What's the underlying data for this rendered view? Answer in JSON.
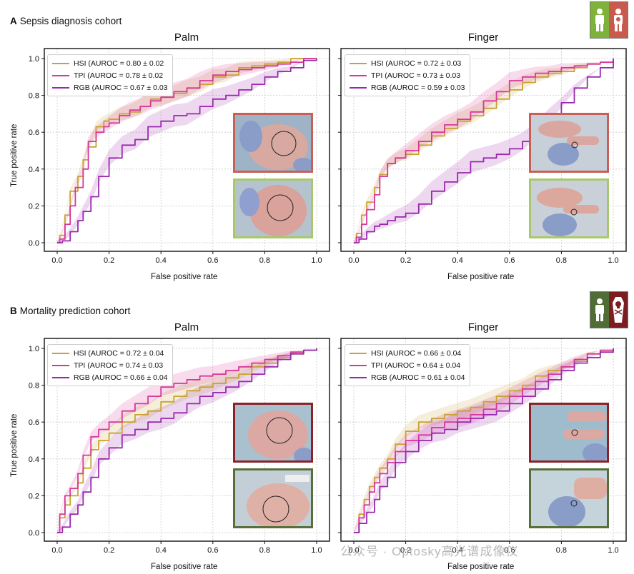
{
  "sections": [
    {
      "letter": "A",
      "title": "Sepsis diagnosis cohort"
    },
    {
      "letter": "B",
      "title": "Mortality prediction cohort"
    }
  ],
  "axis": {
    "xlabel": "False positive rate",
    "ylabel": "True positive rate"
  },
  "colors": {
    "HSI": "#c8a232",
    "TPI": "#d6389a",
    "RGB": "#9a28ad",
    "septic_border": "#c96058",
    "nonseptic_border": "#a8c96a",
    "deceased_border": "#8a2228",
    "survivor_border": "#55703a"
  },
  "watermark": "公众号 · Optosky高光谱成像仪",
  "chart_data": [
    {
      "type": "line",
      "id": "A-palm",
      "title": "Palm",
      "xlabel": "False positive rate",
      "ylabel": "True positive rate",
      "xlim": [
        0,
        1
      ],
      "ylim": [
        0,
        1
      ],
      "grid": true,
      "legend_position": "top-left",
      "ticks": [
        "0.0",
        "0.2",
        "0.4",
        "0.6",
        "0.8",
        "1.0"
      ],
      "series": [
        {
          "name": "HSI",
          "label": "HSI (AUROC = 0.80 ± 0.02",
          "x": [
            0,
            0.01,
            0.03,
            0.05,
            0.08,
            0.1,
            0.12,
            0.15,
            0.18,
            0.2,
            0.24,
            0.28,
            0.32,
            0.36,
            0.4,
            0.45,
            0.5,
            0.55,
            0.6,
            0.65,
            0.7,
            0.75,
            0.8,
            0.85,
            0.9,
            0.95,
            1.0
          ],
          "y": [
            0,
            0.04,
            0.15,
            0.28,
            0.36,
            0.45,
            0.52,
            0.63,
            0.66,
            0.67,
            0.7,
            0.71,
            0.74,
            0.78,
            0.79,
            0.81,
            0.84,
            0.86,
            0.9,
            0.91,
            0.95,
            0.96,
            0.97,
            0.98,
            1.0,
            1.0,
            1.0
          ]
        },
        {
          "name": "TPI",
          "label": "TPI (AUROC = 0.78 ± 0.02",
          "x": [
            0,
            0.01,
            0.03,
            0.05,
            0.07,
            0.1,
            0.12,
            0.15,
            0.18,
            0.2,
            0.24,
            0.28,
            0.32,
            0.36,
            0.4,
            0.45,
            0.5,
            0.55,
            0.6,
            0.65,
            0.7,
            0.75,
            0.8,
            0.85,
            0.9,
            0.95,
            1.0
          ],
          "y": [
            0,
            0.02,
            0.1,
            0.2,
            0.3,
            0.4,
            0.55,
            0.6,
            0.63,
            0.65,
            0.69,
            0.72,
            0.74,
            0.77,
            0.79,
            0.82,
            0.84,
            0.88,
            0.91,
            0.93,
            0.94,
            0.95,
            0.96,
            0.97,
            0.98,
            1.0,
            1.0
          ]
        },
        {
          "name": "RGB",
          "label": "RGB (AUROC = 0.67 ± 0.03",
          "x": [
            0,
            0.02,
            0.05,
            0.08,
            0.1,
            0.13,
            0.16,
            0.2,
            0.25,
            0.3,
            0.35,
            0.4,
            0.45,
            0.5,
            0.55,
            0.6,
            0.65,
            0.7,
            0.75,
            0.8,
            0.85,
            0.9,
            0.95,
            1.0
          ],
          "y": [
            0,
            0.01,
            0.06,
            0.12,
            0.17,
            0.25,
            0.36,
            0.46,
            0.53,
            0.56,
            0.63,
            0.66,
            0.69,
            0.7,
            0.74,
            0.78,
            0.8,
            0.83,
            0.86,
            0.9,
            0.93,
            0.95,
            0.99,
            1.0
          ]
        }
      ]
    },
    {
      "type": "line",
      "id": "A-finger",
      "title": "Finger",
      "xlabel": "False positive rate",
      "ylabel": "",
      "xlim": [
        0,
        1
      ],
      "ylim": [
        0,
        1
      ],
      "grid": true,
      "legend_position": "top-left",
      "ticks": [
        "0.0",
        "0.2",
        "0.4",
        "0.6",
        "0.8",
        "1.0"
      ],
      "series": [
        {
          "name": "HSI",
          "label": "HSI (AUROC = 0.72 ± 0.03",
          "x": [
            0,
            0.01,
            0.03,
            0.05,
            0.08,
            0.1,
            0.13,
            0.16,
            0.2,
            0.25,
            0.3,
            0.35,
            0.4,
            0.45,
            0.5,
            0.55,
            0.6,
            0.65,
            0.7,
            0.75,
            0.8,
            0.85,
            0.9,
            0.95,
            1.0
          ],
          "y": [
            0,
            0.05,
            0.15,
            0.22,
            0.3,
            0.37,
            0.43,
            0.46,
            0.48,
            0.53,
            0.58,
            0.62,
            0.66,
            0.69,
            0.73,
            0.78,
            0.83,
            0.87,
            0.9,
            0.92,
            0.93,
            0.95,
            0.97,
            0.98,
            1.0
          ]
        },
        {
          "name": "TPI",
          "label": "TPI (AUROC = 0.73 ± 0.03",
          "x": [
            0,
            0.01,
            0.03,
            0.05,
            0.08,
            0.1,
            0.13,
            0.16,
            0.2,
            0.25,
            0.3,
            0.35,
            0.4,
            0.45,
            0.5,
            0.55,
            0.6,
            0.65,
            0.7,
            0.75,
            0.8,
            0.85,
            0.9,
            0.95,
            1.0
          ],
          "y": [
            0,
            0.03,
            0.1,
            0.18,
            0.26,
            0.36,
            0.43,
            0.46,
            0.5,
            0.55,
            0.6,
            0.64,
            0.67,
            0.71,
            0.77,
            0.82,
            0.88,
            0.9,
            0.92,
            0.93,
            0.95,
            0.96,
            0.97,
            0.98,
            1.0
          ]
        },
        {
          "name": "RGB",
          "label": "RGB (AUROC = 0.59 ± 0.03",
          "x": [
            0,
            0.02,
            0.05,
            0.08,
            0.1,
            0.13,
            0.16,
            0.2,
            0.25,
            0.3,
            0.35,
            0.4,
            0.45,
            0.5,
            0.55,
            0.6,
            0.65,
            0.7,
            0.75,
            0.8,
            0.85,
            0.9,
            0.95,
            1.0
          ],
          "y": [
            0,
            0.02,
            0.06,
            0.09,
            0.1,
            0.12,
            0.14,
            0.16,
            0.21,
            0.28,
            0.33,
            0.38,
            0.44,
            0.46,
            0.48,
            0.51,
            0.55,
            0.61,
            0.69,
            0.76,
            0.84,
            0.9,
            0.95,
            1.0
          ]
        }
      ]
    },
    {
      "type": "line",
      "id": "B-palm",
      "title": "Palm",
      "xlabel": "False positive rate",
      "ylabel": "True positive rate",
      "xlim": [
        0,
        1
      ],
      "ylim": [
        0,
        1
      ],
      "grid": true,
      "legend_position": "top-left",
      "ticks": [
        "0.0",
        "0.2",
        "0.4",
        "0.6",
        "0.8",
        "1.0"
      ],
      "series": [
        {
          "name": "HSI",
          "label": "HSI (AUROC = 0.72 ± 0.04",
          "x": [
            0,
            0.01,
            0.03,
            0.05,
            0.08,
            0.1,
            0.13,
            0.16,
            0.2,
            0.25,
            0.3,
            0.35,
            0.4,
            0.45,
            0.5,
            0.55,
            0.6,
            0.65,
            0.7,
            0.75,
            0.8,
            0.85,
            0.9,
            0.95,
            1.0
          ],
          "y": [
            0,
            0.08,
            0.15,
            0.2,
            0.27,
            0.35,
            0.45,
            0.5,
            0.54,
            0.6,
            0.64,
            0.66,
            0.71,
            0.74,
            0.77,
            0.79,
            0.81,
            0.84,
            0.86,
            0.9,
            0.92,
            0.95,
            0.97,
            0.99,
            1.0
          ]
        },
        {
          "name": "TPI",
          "label": "TPI (AUROC = 0.74 ± 0.03",
          "x": [
            0,
            0.01,
            0.03,
            0.05,
            0.08,
            0.1,
            0.13,
            0.16,
            0.2,
            0.25,
            0.3,
            0.35,
            0.4,
            0.45,
            0.5,
            0.55,
            0.6,
            0.65,
            0.7,
            0.75,
            0.8,
            0.85,
            0.9,
            0.95,
            1.0
          ],
          "y": [
            0,
            0.1,
            0.2,
            0.24,
            0.32,
            0.42,
            0.52,
            0.56,
            0.6,
            0.66,
            0.7,
            0.74,
            0.79,
            0.81,
            0.83,
            0.85,
            0.86,
            0.88,
            0.9,
            0.92,
            0.94,
            0.96,
            0.98,
            0.99,
            1.0
          ]
        },
        {
          "name": "RGB",
          "label": "RGB (AUROC = 0.66 ± 0.04",
          "x": [
            0,
            0.02,
            0.05,
            0.08,
            0.1,
            0.13,
            0.16,
            0.2,
            0.25,
            0.3,
            0.35,
            0.4,
            0.45,
            0.5,
            0.55,
            0.6,
            0.65,
            0.7,
            0.75,
            0.8,
            0.85,
            0.9,
            0.95,
            1.0
          ],
          "y": [
            0,
            0.03,
            0.1,
            0.15,
            0.22,
            0.3,
            0.4,
            0.46,
            0.53,
            0.56,
            0.6,
            0.62,
            0.65,
            0.7,
            0.74,
            0.76,
            0.79,
            0.82,
            0.86,
            0.9,
            0.94,
            0.97,
            0.99,
            1.0
          ]
        }
      ]
    },
    {
      "type": "line",
      "id": "B-finger",
      "title": "Finger",
      "xlabel": "False positive rate",
      "ylabel": "",
      "xlim": [
        0,
        1
      ],
      "ylim": [
        0,
        1
      ],
      "grid": true,
      "legend_position": "top-left",
      "ticks": [
        "0.0",
        "0.2",
        "0.4",
        "0.6",
        "0.8",
        "1.0"
      ],
      "series": [
        {
          "name": "HSI",
          "label": "HSI (AUROC = 0.66 ± 0.04",
          "x": [
            0,
            0.02,
            0.04,
            0.06,
            0.08,
            0.1,
            0.13,
            0.16,
            0.2,
            0.25,
            0.3,
            0.35,
            0.4,
            0.45,
            0.5,
            0.55,
            0.6,
            0.65,
            0.7,
            0.75,
            0.8,
            0.85,
            0.9,
            0.95,
            1.0
          ],
          "y": [
            0,
            0.1,
            0.18,
            0.25,
            0.3,
            0.35,
            0.4,
            0.48,
            0.55,
            0.6,
            0.62,
            0.64,
            0.66,
            0.68,
            0.71,
            0.74,
            0.77,
            0.8,
            0.85,
            0.88,
            0.9,
            0.93,
            0.97,
            0.99,
            1.0
          ]
        },
        {
          "name": "TPI",
          "label": "TPI (AUROC = 0.64 ± 0.04",
          "x": [
            0,
            0.02,
            0.04,
            0.06,
            0.08,
            0.1,
            0.13,
            0.16,
            0.2,
            0.25,
            0.3,
            0.35,
            0.4,
            0.45,
            0.5,
            0.55,
            0.6,
            0.65,
            0.7,
            0.75,
            0.8,
            0.85,
            0.9,
            0.95,
            1.0
          ],
          "y": [
            0,
            0.08,
            0.15,
            0.22,
            0.27,
            0.32,
            0.38,
            0.44,
            0.5,
            0.53,
            0.57,
            0.6,
            0.62,
            0.64,
            0.67,
            0.7,
            0.74,
            0.78,
            0.82,
            0.86,
            0.9,
            0.94,
            0.97,
            0.99,
            1.0
          ]
        },
        {
          "name": "RGB",
          "label": "RGB (AUROC = 0.61 ± 0.04",
          "x": [
            0,
            0.02,
            0.05,
            0.08,
            0.1,
            0.13,
            0.16,
            0.2,
            0.25,
            0.3,
            0.35,
            0.4,
            0.45,
            0.5,
            0.55,
            0.6,
            0.65,
            0.7,
            0.75,
            0.8,
            0.85,
            0.9,
            0.95,
            1.0
          ],
          "y": [
            0,
            0.05,
            0.11,
            0.18,
            0.25,
            0.3,
            0.38,
            0.44,
            0.5,
            0.54,
            0.56,
            0.6,
            0.62,
            0.64,
            0.66,
            0.7,
            0.74,
            0.78,
            0.83,
            0.88,
            0.92,
            0.95,
            0.98,
            1.0
          ]
        }
      ]
    }
  ]
}
